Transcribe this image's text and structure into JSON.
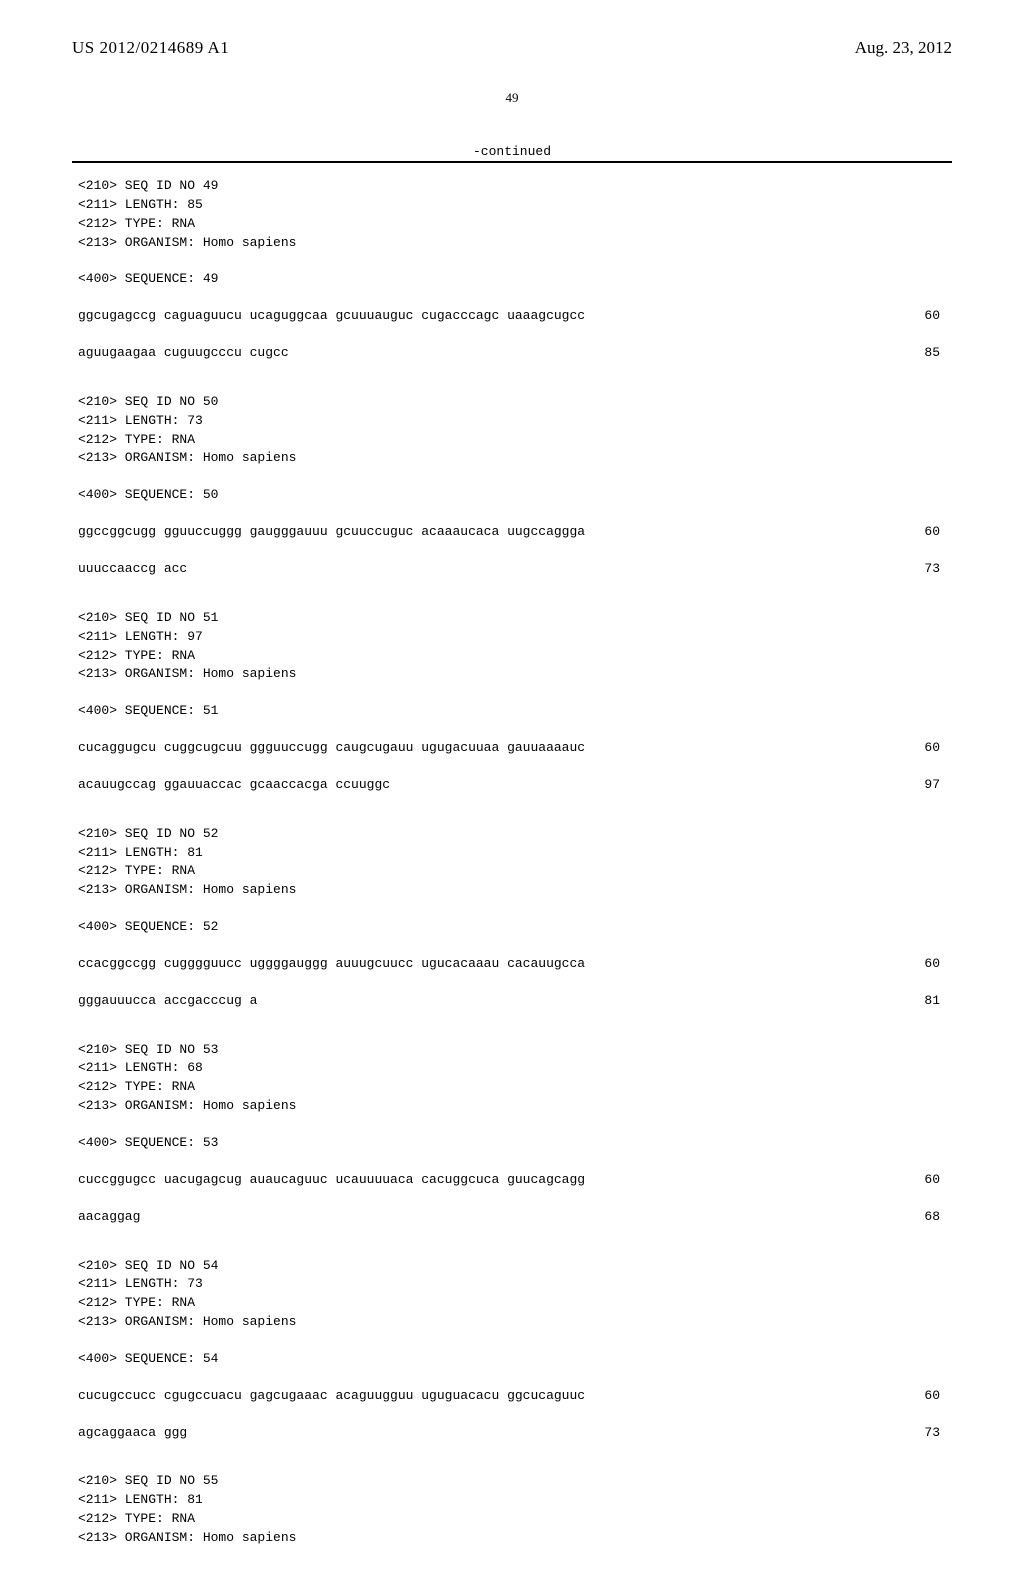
{
  "header": {
    "pub_number": "US 2012/0214689 A1",
    "pub_date": "Aug. 23, 2012",
    "page_number": "49",
    "continued_label": "-continued"
  },
  "sequences": [
    {
      "meta": [
        "<210> SEQ ID NO 49",
        "<211> LENGTH: 85",
        "<212> TYPE: RNA",
        "<213> ORGANISM: Homo sapiens"
      ],
      "seq_label": "<400> SEQUENCE: 49",
      "lines": [
        {
          "text": "ggcugagccg caguaguucu ucaguggcaa gcuuuauguc cugacccagc uaaagcugcc",
          "num": "60"
        },
        {
          "text": "aguugaagaa cuguugcccu cugcc",
          "num": "85"
        }
      ]
    },
    {
      "meta": [
        "<210> SEQ ID NO 50",
        "<211> LENGTH: 73",
        "<212> TYPE: RNA",
        "<213> ORGANISM: Homo sapiens"
      ],
      "seq_label": "<400> SEQUENCE: 50",
      "lines": [
        {
          "text": "ggccggcugg gguuccuggg gaugggauuu gcuuccuguc acaaaucaca uugccaggga",
          "num": "60"
        },
        {
          "text": "uuuccaaccg acc",
          "num": "73"
        }
      ]
    },
    {
      "meta": [
        "<210> SEQ ID NO 51",
        "<211> LENGTH: 97",
        "<212> TYPE: RNA",
        "<213> ORGANISM: Homo sapiens"
      ],
      "seq_label": "<400> SEQUENCE: 51",
      "lines": [
        {
          "text": "cucaggugcu cuggcugcuu ggguuccugg caugcugauu ugugacuuaa gauuaaaauc",
          "num": "60"
        },
        {
          "text": "acauugccag ggauuaccac gcaaccacga ccuuggc",
          "num": "97"
        }
      ]
    },
    {
      "meta": [
        "<210> SEQ ID NO 52",
        "<211> LENGTH: 81",
        "<212> TYPE: RNA",
        "<213> ORGANISM: Homo sapiens"
      ],
      "seq_label": "<400> SEQUENCE: 52",
      "lines": [
        {
          "text": "ccacggccgg cugggguucc uggggauggg auuugcuucc ugucacaaau cacauugcca",
          "num": "60"
        },
        {
          "text": "gggauuucca accgacccug a",
          "num": "81"
        }
      ]
    },
    {
      "meta": [
        "<210> SEQ ID NO 53",
        "<211> LENGTH: 68",
        "<212> TYPE: RNA",
        "<213> ORGANISM: Homo sapiens"
      ],
      "seq_label": "<400> SEQUENCE: 53",
      "lines": [
        {
          "text": "cuccggugcc uacugagcug auaucaguuc ucauuuuaca cacuggcuca guucagcagg",
          "num": "60"
        },
        {
          "text": "aacaggag",
          "num": "68"
        }
      ]
    },
    {
      "meta": [
        "<210> SEQ ID NO 54",
        "<211> LENGTH: 73",
        "<212> TYPE: RNA",
        "<213> ORGANISM: Homo sapiens"
      ],
      "seq_label": "<400> SEQUENCE: 54",
      "lines": [
        {
          "text": "cucugccucc cgugccuacu gagcugaaac acaguugguu uguguacacu ggcucaguuc",
          "num": "60"
        },
        {
          "text": "agcaggaaca ggg",
          "num": "73"
        }
      ]
    },
    {
      "meta": [
        "<210> SEQ ID NO 55",
        "<211> LENGTH: 81",
        "<212> TYPE: RNA",
        "<213> ORGANISM: Homo sapiens"
      ],
      "seq_label": "",
      "lines": []
    }
  ]
}
